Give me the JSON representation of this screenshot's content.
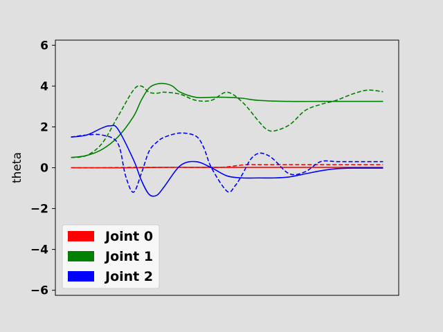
{
  "chart_data": {
    "type": "line",
    "title": "",
    "xlabel": "",
    "ylabel": "theta",
    "ylim": [
      -6.25,
      6.25
    ],
    "xlim": [
      -0.05,
      1.05
    ],
    "y_ticks": [
      6,
      4,
      2,
      0,
      -2,
      -4,
      -6
    ],
    "y_tick_labels": [
      "6",
      "4",
      "2",
      "0",
      "−2",
      "−4",
      "−6"
    ],
    "x_ticks_visible": false,
    "grid": false,
    "legend_position": "lower-left",
    "legend": [
      {
        "label": "Joint 0",
        "color": "#ff0000"
      },
      {
        "label": "Joint 1",
        "color": "#008000"
      },
      {
        "label": "Joint 2",
        "color": "#0000ff"
      }
    ],
    "series": [
      {
        "joint": 0,
        "style": "solid",
        "color": "#ff0000",
        "x": [
          0,
          0.1,
          0.2,
          0.3,
          0.4,
          0.5,
          0.6,
          0.7,
          0.8,
          0.9,
          1.0
        ],
        "y": [
          0.0,
          0.0,
          0.0,
          0.02,
          0.02,
          0.02,
          0.02,
          0.02,
          0.02,
          0.02,
          0.02
        ]
      },
      {
        "joint": 0,
        "style": "dashed",
        "color": "#ff0000",
        "x": [
          0,
          0.1,
          0.2,
          0.3,
          0.4,
          0.48,
          0.52,
          0.56,
          0.6,
          0.7,
          0.8,
          0.9,
          1.0
        ],
        "y": [
          0.0,
          0.0,
          0.02,
          0.02,
          0.02,
          0.02,
          0.08,
          0.15,
          0.15,
          0.15,
          0.15,
          0.15,
          0.15
        ]
      },
      {
        "joint": 1,
        "style": "solid",
        "color": "#008000",
        "x": [
          0,
          0.05,
          0.1,
          0.15,
          0.2,
          0.225,
          0.25,
          0.275,
          0.3,
          0.325,
          0.35,
          0.4,
          0.45,
          0.5,
          0.55,
          0.6,
          0.7,
          0.8,
          0.9,
          1.0
        ],
        "y": [
          0.5,
          0.6,
          0.9,
          1.5,
          2.5,
          3.3,
          3.9,
          4.1,
          4.12,
          4.0,
          3.7,
          3.45,
          3.45,
          3.45,
          3.4,
          3.3,
          3.25,
          3.25,
          3.25,
          3.25
        ]
      },
      {
        "joint": 1,
        "style": "dashed",
        "color": "#008000",
        "x": [
          0,
          0.05,
          0.1,
          0.15,
          0.2,
          0.225,
          0.25,
          0.275,
          0.3,
          0.35,
          0.4,
          0.45,
          0.5,
          0.55,
          0.6,
          0.625,
          0.65,
          0.7,
          0.75,
          0.8,
          0.85,
          0.9,
          0.95,
          1.0
        ],
        "y": [
          0.5,
          0.6,
          1.2,
          2.5,
          3.8,
          4.0,
          3.7,
          3.65,
          3.7,
          3.6,
          3.3,
          3.3,
          3.7,
          3.2,
          2.3,
          1.9,
          1.8,
          2.1,
          2.8,
          3.1,
          3.3,
          3.6,
          3.8,
          3.72
        ]
      },
      {
        "joint": 2,
        "style": "solid",
        "color": "#0000ff",
        "x": [
          0,
          0.05,
          0.1,
          0.125,
          0.15,
          0.2,
          0.225,
          0.25,
          0.275,
          0.3,
          0.35,
          0.4,
          0.45,
          0.5,
          0.55,
          0.6,
          0.65,
          0.7,
          0.75,
          0.8,
          0.85,
          0.9,
          1.0
        ],
        "y": [
          1.5,
          1.6,
          1.95,
          2.05,
          1.9,
          0.4,
          -0.6,
          -1.3,
          -1.35,
          -0.9,
          0.1,
          0.3,
          0.0,
          -0.4,
          -0.5,
          -0.5,
          -0.5,
          -0.45,
          -0.3,
          -0.15,
          -0.05,
          -0.02,
          -0.02
        ]
      },
      {
        "joint": 2,
        "style": "dashed",
        "color": "#0000ff",
        "x": [
          0,
          0.05,
          0.1,
          0.15,
          0.175,
          0.2,
          0.225,
          0.25,
          0.275,
          0.3,
          0.35,
          0.4,
          0.425,
          0.45,
          0.5,
          0.525,
          0.55,
          0.575,
          0.6,
          0.625,
          0.65,
          0.7,
          0.75,
          0.8,
          0.85,
          0.9,
          1.0
        ],
        "y": [
          1.5,
          1.6,
          1.6,
          1.2,
          -0.4,
          -1.2,
          -0.3,
          0.8,
          1.25,
          1.5,
          1.7,
          1.55,
          1.0,
          0.0,
          -1.15,
          -0.9,
          -0.3,
          0.4,
          0.7,
          0.65,
          0.4,
          -0.3,
          -0.2,
          0.3,
          0.3,
          0.3,
          0.3
        ]
      }
    ]
  }
}
